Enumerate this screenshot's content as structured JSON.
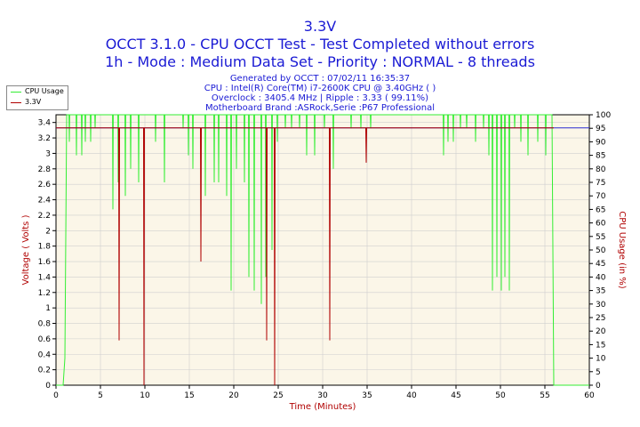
{
  "header": {
    "title": "3.3V",
    "subtitle1": "OCCT 3.1.0 - CPU OCCT Test - Test Completed without errors",
    "subtitle2": "1h - Mode : Medium Data Set - Priority : NORMAL - 8 threads"
  },
  "info": {
    "line1": "Generated by OCCT : 07/02/11 16:35:37",
    "line2": "CPU : Intel(R) Core(TM) i7-2600K CPU @ 3.40GHz (  )",
    "line3": "Overclock : 3405.4 MHz | Ripple : 3.33 ( 99.11%)",
    "line4": "Motherboard Brand :ASRock,Serie :P67 Professional"
  },
  "colors": {
    "cpu": "#33ee33",
    "voltage": "#b00000",
    "title": "#1a1ad4",
    "axis_left": "#b00000",
    "axis_right": "#b00000",
    "plot_bg": "#fbf6e8",
    "grid": "#cfcfcf",
    "avg_line": "#2a2ad0"
  },
  "chart_data": {
    "type": "line",
    "xlabel": "Time (Minutes)",
    "ylabel": "Voltage ( Volts )",
    "y2label": "CPU Usage (in %)",
    "xlim": [
      0,
      60
    ],
    "ylim": [
      0,
      3.5
    ],
    "y2lim": [
      0,
      100
    ],
    "xticks": [
      0,
      5,
      10,
      15,
      20,
      25,
      30,
      35,
      40,
      45,
      50,
      55,
      60
    ],
    "yticks": [
      0,
      0.2,
      0.4,
      0.6,
      0.8,
      1,
      1.2,
      1.4,
      1.6,
      1.8,
      2,
      2.2,
      2.4,
      2.6,
      2.8,
      3,
      3.2,
      3.4
    ],
    "y2ticks": [
      0,
      5,
      10,
      15,
      20,
      25,
      30,
      35,
      40,
      45,
      50,
      55,
      60,
      65,
      70,
      75,
      80,
      85,
      90,
      95,
      100
    ],
    "grid": true,
    "legend": "top-left",
    "series": [
      {
        "name": "CPU Usage",
        "axis": "right",
        "baseline": 100,
        "start": [
          [
            0,
            0
          ],
          [
            0.8,
            0
          ],
          [
            1.0,
            10
          ],
          [
            1.2,
            100
          ]
        ],
        "end_drop": [
          [
            55.8,
            100
          ],
          [
            56.0,
            0
          ],
          [
            60,
            0
          ]
        ],
        "dips": [
          [
            1.5,
            90
          ],
          [
            2.3,
            85
          ],
          [
            2.9,
            85
          ],
          [
            3.3,
            90
          ],
          [
            3.9,
            90
          ],
          [
            4.4,
            95
          ],
          [
            6.4,
            65
          ],
          [
            7.0,
            75
          ],
          [
            7.8,
            70
          ],
          [
            8.4,
            80
          ],
          [
            9.3,
            75
          ],
          [
            11.2,
            90
          ],
          [
            12.2,
            75
          ],
          [
            14.3,
            95
          ],
          [
            14.9,
            85
          ],
          [
            15.4,
            80
          ],
          [
            16.8,
            70
          ],
          [
            17.8,
            75
          ],
          [
            18.3,
            75
          ],
          [
            19.2,
            70
          ],
          [
            19.7,
            35
          ],
          [
            20.3,
            80
          ],
          [
            21.2,
            75
          ],
          [
            21.7,
            40
          ],
          [
            22.3,
            35
          ],
          [
            23.1,
            30
          ],
          [
            23.6,
            40
          ],
          [
            24.3,
            50
          ],
          [
            24.9,
            90
          ],
          [
            25.8,
            95
          ],
          [
            26.5,
            95
          ],
          [
            27.4,
            95
          ],
          [
            28.2,
            85
          ],
          [
            29.1,
            85
          ],
          [
            30.2,
            95
          ],
          [
            31.2,
            80
          ],
          [
            33.2,
            95
          ],
          [
            34.3,
            95
          ],
          [
            35.4,
            95
          ],
          [
            43.6,
            85
          ],
          [
            44.1,
            90
          ],
          [
            44.7,
            90
          ],
          [
            45.5,
            95
          ],
          [
            46.2,
            95
          ],
          [
            47.2,
            90
          ],
          [
            48.1,
            95
          ],
          [
            48.7,
            85
          ],
          [
            49.1,
            35
          ],
          [
            49.6,
            40
          ],
          [
            50.1,
            35
          ],
          [
            50.5,
            40
          ],
          [
            51.0,
            35
          ],
          [
            51.6,
            95
          ],
          [
            52.3,
            90
          ],
          [
            53.1,
            85
          ],
          [
            54.2,
            90
          ],
          [
            55.1,
            85
          ]
        ]
      },
      {
        "name": "3.3V",
        "axis": "left",
        "baseline": 3.33,
        "dips": [
          [
            7.1,
            0.58
          ],
          [
            9.9,
            0.0
          ],
          [
            16.3,
            1.6
          ],
          [
            23.7,
            0.58
          ],
          [
            24.6,
            0.0
          ],
          [
            30.8,
            0.58
          ],
          [
            34.9,
            2.88
          ]
        ]
      }
    ],
    "average_line": 3.33
  }
}
